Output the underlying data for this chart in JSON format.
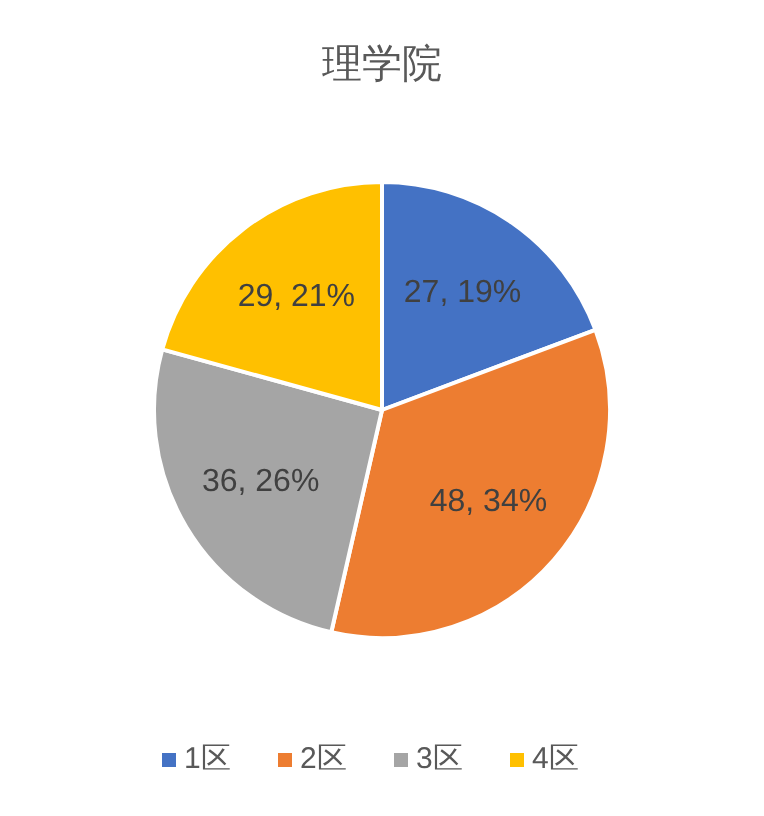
{
  "chart_data": {
    "type": "pie",
    "title": "理学院",
    "categories": [
      "1区",
      "2区",
      "3区",
      "4区"
    ],
    "values": [
      27,
      48,
      36,
      29
    ],
    "colors": [
      "#4472c4",
      "#ed7d31",
      "#a5a5a5",
      "#ffc000"
    ],
    "value_labels": [
      "27, 19%",
      "48, 34%",
      "36, 26%",
      "29, 21%"
    ],
    "legend": "bottom"
  }
}
